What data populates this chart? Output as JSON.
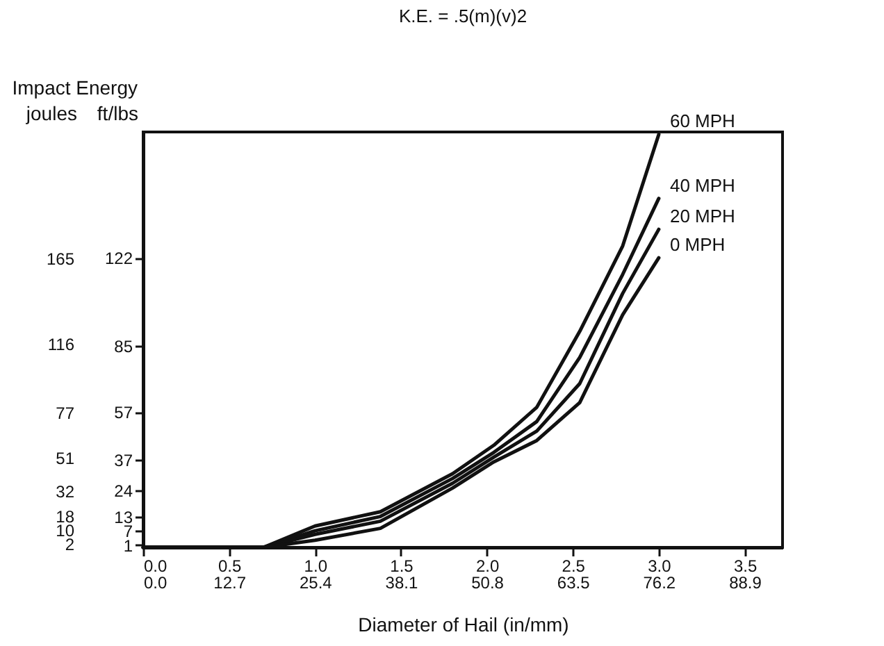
{
  "chart_data": {
    "type": "line",
    "title": "K.E. = .5(m)(v)2",
    "xlabel": "Diameter of Hail (in/mm)",
    "ylabel": "ft/lbs",
    "y2label": "joules",
    "annotations": [
      "Impact Energy"
    ],
    "x": [
      0,
      0.7,
      1.0,
      1.38,
      1.8,
      2.04,
      2.29,
      2.54,
      2.79,
      3.0
    ],
    "series": [
      {
        "name": "60 MPH",
        "color": "#111111",
        "values": [
          0,
          0,
          9,
          15,
          31,
          43,
          59,
          91,
          127,
          174
        ]
      },
      {
        "name": "40 MPH",
        "color": "#111111",
        "values": [
          0,
          0,
          7,
          13,
          29,
          40,
          53,
          80,
          115,
          147
        ]
      },
      {
        "name": "20 MPH",
        "color": "#111111",
        "values": [
          0,
          0,
          5.5,
          11,
          27,
          38,
          49,
          69,
          107,
          134
        ]
      },
      {
        "name": "0 MPH",
        "color": "#111111",
        "values": [
          0,
          0,
          3,
          8,
          25,
          36,
          45,
          61,
          98,
          122
        ]
      }
    ],
    "xlim": [
      0,
      3.72
    ],
    "xticks": [
      {
        "value": 0,
        "label": "0.0"
      },
      0.5,
      {
        "value": 1,
        "label": "1.0"
      },
      1.5,
      {
        "value": 2,
        "label": "2.0"
      },
      2.5,
      {
        "value": 3,
        "label": "3.0"
      },
      3.5
    ],
    "x2lim": [
      0,
      94.5
    ],
    "x2ticks": [
      {
        "value": 0,
        "label": "0.0"
      },
      12.7,
      25.4,
      38.1,
      50.8,
      63.5,
      76.2,
      88.9
    ],
    "ylim": [
      0,
      175
    ],
    "yticks": [
      1,
      7,
      13,
      24,
      37,
      57,
      85,
      122
    ],
    "y2lim": [
      0,
      237
    ],
    "y2ticks": [
      2,
      10,
      18,
      32,
      51,
      77,
      116,
      165
    ],
    "grid": false,
    "legend": false,
    "marker": "none",
    "line_style": "solid"
  }
}
